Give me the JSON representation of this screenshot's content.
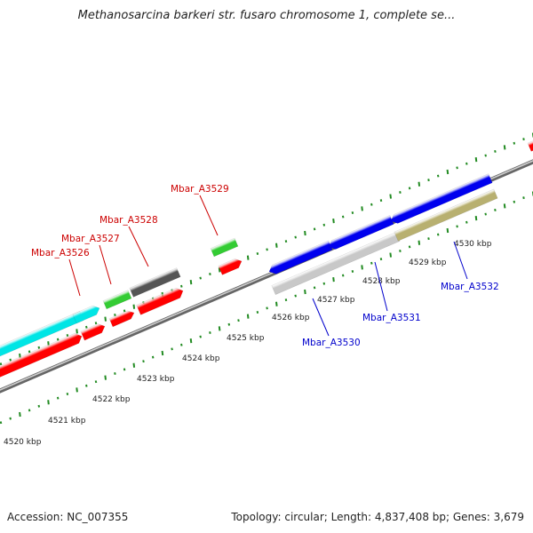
{
  "title": "Methanosarcina barkeri str. fusaro chromosome 1, complete se...",
  "accession": "Accession: NC_007355",
  "summary": "Topology: circular; Length: 4,837,408 bp; Genes: 3,679",
  "colors": {
    "backbone": "#8c8c8c",
    "tick_dots": "#228b22",
    "forward_label": "#cc0000",
    "reverse_label": "#0000cc",
    "cds_forward": "#ff0000",
    "cds_reverse": "#0000ee",
    "cyan_feature": "#00e5e5",
    "green_feature": "#33cc33",
    "dark_feature": "#555555",
    "silver_feature": "#c8c8c8",
    "olive_feature": "#b8b070"
  },
  "scale": {
    "labels": [
      "4520 kbp",
      "4521 kbp",
      "4522 kbp",
      "4523 kbp",
      "4524 kbp",
      "4525 kbp",
      "4526 kbp",
      "4527 kbp",
      "4528 kbp",
      "4529 kbp",
      "4530 kbp"
    ]
  },
  "gene_labels": {
    "forward": [
      "Mbar_A3526",
      "Mbar_A3527",
      "Mbar_A3528",
      "Mbar_A3529"
    ],
    "reverse": [
      "Mbar_A3530",
      "Mbar_A3531",
      "Mbar_A3532"
    ]
  }
}
